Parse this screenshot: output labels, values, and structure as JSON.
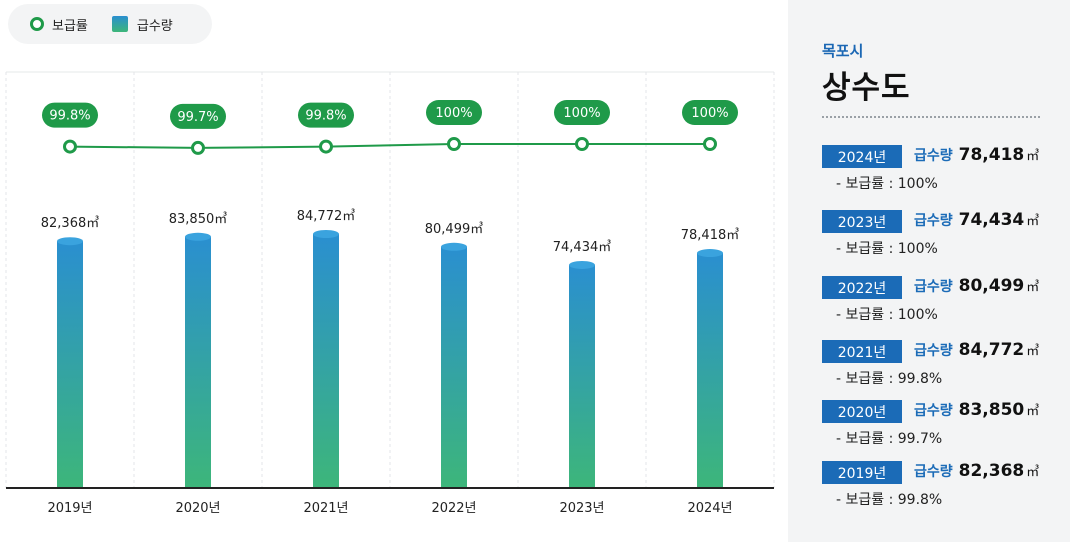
{
  "legend": {
    "rate_label": "보급률",
    "supply_label": "급수량"
  },
  "chart_data": {
    "type": "bar",
    "categories": [
      "2019년",
      "2020년",
      "2021년",
      "2022년",
      "2023년",
      "2024년"
    ],
    "series": [
      {
        "name": "급수량",
        "type": "bar",
        "values": [
          82368,
          83850,
          84772,
          80499,
          74434,
          78418
        ],
        "labels": [
          "82,368㎥",
          "83,850㎥",
          "84,772㎥",
          "80,499㎥",
          "74,434㎥",
          "78,418㎥"
        ]
      },
      {
        "name": "보급률",
        "type": "line",
        "values": [
          99.8,
          99.7,
          99.8,
          100,
          100,
          100
        ],
        "labels": [
          "99.8%",
          "99.7%",
          "99.8%",
          "100%",
          "100%",
          "100%"
        ]
      }
    ],
    "colors": {
      "bar_top": "#2a8fd0",
      "bar_bottom": "#3db67a",
      "line": "#1f9a49"
    },
    "grid": "vertical-dashed",
    "legend_position": "top-left"
  },
  "panel": {
    "city": "목포시",
    "title": "상수도",
    "supply_label": "급수량",
    "unit": "㎥",
    "entries": [
      {
        "year": "2024년",
        "supply": "78,418",
        "rate": "- 보급률 : 100%"
      },
      {
        "year": "2023년",
        "supply": "74,434",
        "rate": "- 보급률 : 100%"
      },
      {
        "year": "2022년",
        "supply": "80,499",
        "rate": "- 보급률 : 100%"
      },
      {
        "year": "2021년",
        "supply": "84,772",
        "rate": "- 보급률 : 99.8%"
      },
      {
        "year": "2020년",
        "supply": "83,850",
        "rate": "- 보급률 : 99.7%"
      },
      {
        "year": "2019년",
        "supply": "82,368",
        "rate": "- 보급률 : 99.8%"
      }
    ]
  }
}
